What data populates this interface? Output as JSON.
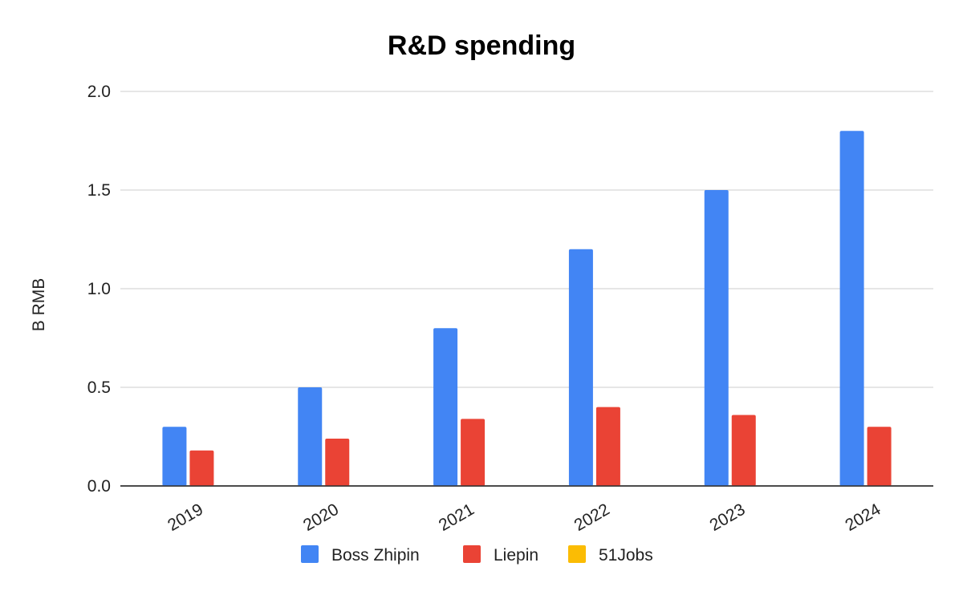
{
  "chart_data": {
    "type": "bar",
    "title": "R&D spending",
    "xlabel": "",
    "ylabel": "B RMB",
    "categories": [
      "2019",
      "2020",
      "2021",
      "2022",
      "2023",
      "2024"
    ],
    "series": [
      {
        "name": "Boss Zhipin",
        "color": "#4285F4",
        "values": [
          0.3,
          0.5,
          0.8,
          1.2,
          1.5,
          1.8
        ]
      },
      {
        "name": "Liepin",
        "color": "#EA4335",
        "values": [
          0.18,
          0.24,
          0.34,
          0.4,
          0.36,
          0.3
        ]
      },
      {
        "name": "51Jobs",
        "color": "#FBBC04",
        "values": [
          null,
          null,
          null,
          null,
          null,
          null
        ]
      }
    ],
    "ylim": [
      0,
      2.0
    ],
    "yticks": [
      "0.0",
      "0.5",
      "1.0",
      "1.5",
      "2.0"
    ],
    "grid": true,
    "legend": "bottom"
  }
}
